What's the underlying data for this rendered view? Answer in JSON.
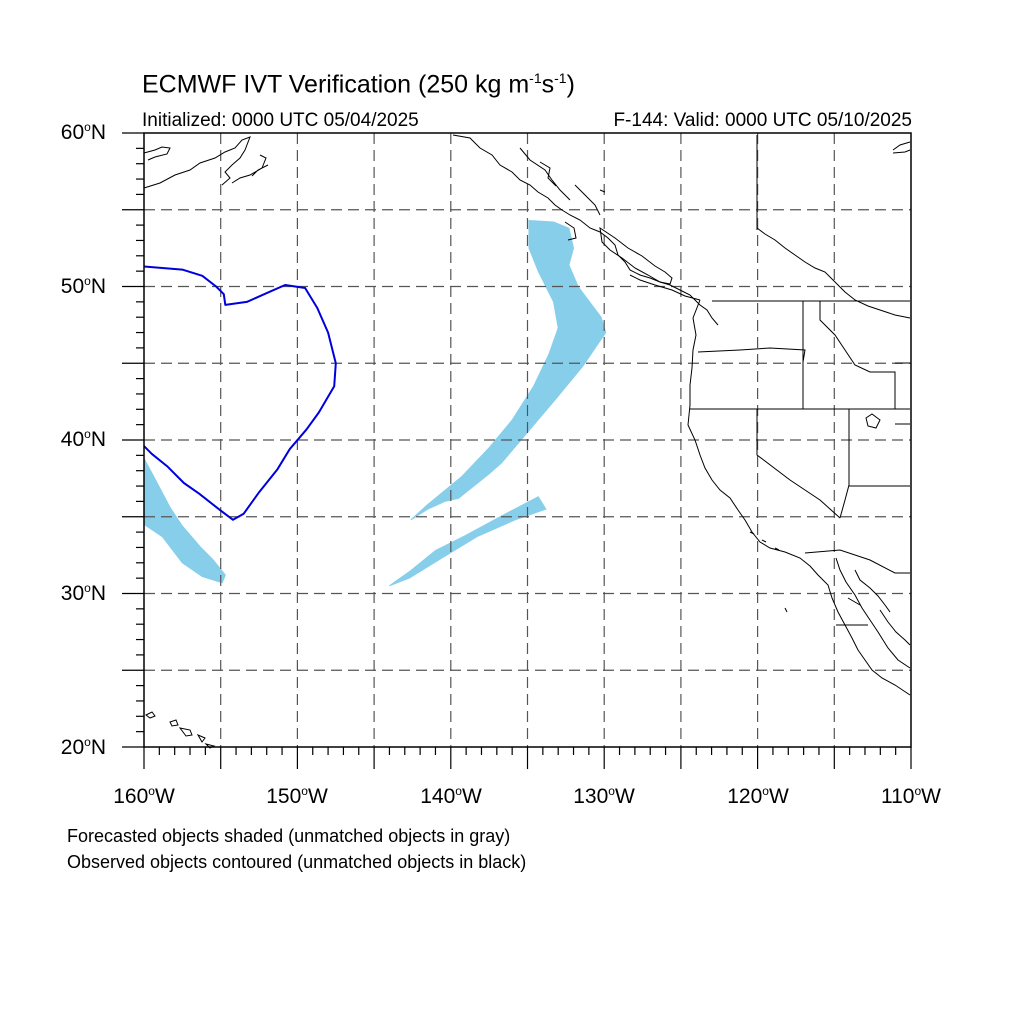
{
  "title": {
    "prefix": "ECMWF IVT Verification (250 kg m",
    "exp1": "-1",
    "mid": "s",
    "exp2": "-1",
    "suffix": ")"
  },
  "subtitle_left": "Initialized: 0000 UTC 05/04/2025",
  "subtitle_right": "F-144: Valid: 0000 UTC 05/10/2025",
  "lat_labels": [
    "60",
    "50",
    "40",
    "30",
    "20"
  ],
  "lat_suffix": "N",
  "lon_labels": [
    "160",
    "150",
    "140",
    "130",
    "120",
    "110"
  ],
  "lon_suffix": "W",
  "degree_symbol": "o",
  "notes": [
    "Forecasted objects shaded (unmatched objects in gray)",
    "Observed objects contoured (unmatched objects in black)"
  ],
  "map": {
    "extent": {
      "lon_min": -160,
      "lon_max": -110,
      "lat_min": 20,
      "lat_max": 60
    },
    "forecast_color": "#87CEEB",
    "observed_color": "#0000DD",
    "grid_style": "dashed",
    "grid_lons": [
      -155,
      -150,
      -145,
      -140,
      -135,
      -130,
      -125,
      -120,
      -115
    ],
    "grid_lats": [
      25,
      30,
      35,
      40,
      45,
      50,
      55
    ],
    "forecast_objects": [
      {
        "name": "main-ar-band",
        "lonlat": [
          [
            -134.9,
            54.3
          ],
          [
            -133.3,
            54.2
          ],
          [
            -132.3,
            53.8
          ],
          [
            -132.0,
            52.5
          ],
          [
            -132.3,
            51.4
          ],
          [
            -131.7,
            50.0
          ],
          [
            -130.2,
            48.0
          ],
          [
            -129.9,
            47.0
          ],
          [
            -131.4,
            44.8
          ],
          [
            -133.3,
            42.5
          ],
          [
            -135.0,
            40.5
          ],
          [
            -136.7,
            38.5
          ],
          [
            -137.5,
            37.8
          ],
          [
            -139.5,
            36.2
          ],
          [
            -140.4,
            36.0
          ],
          [
            -141.5,
            35.5
          ],
          [
            -142.6,
            34.8
          ],
          [
            -141.5,
            35.8
          ],
          [
            -139.3,
            37.6
          ],
          [
            -137.5,
            39.5
          ],
          [
            -136.0,
            41.3
          ],
          [
            -134.6,
            43.5
          ],
          [
            -133.6,
            45.6
          ],
          [
            -133.0,
            47.3
          ],
          [
            -133.3,
            49.0
          ],
          [
            -134.3,
            51.0
          ],
          [
            -134.9,
            52.5
          ]
        ]
      },
      {
        "name": "secondary-ar-band",
        "lonlat": [
          [
            -134.3,
            36.3
          ],
          [
            -133.8,
            35.5
          ],
          [
            -135.8,
            34.8
          ],
          [
            -138.3,
            33.7
          ],
          [
            -140.6,
            32.3
          ],
          [
            -142.7,
            31.0
          ],
          [
            -144.0,
            30.5
          ],
          [
            -142.6,
            31.5
          ],
          [
            -141.0,
            32.8
          ],
          [
            -139.0,
            33.8
          ],
          [
            -136.6,
            35.1
          ]
        ]
      },
      {
        "name": "subtropical-tail",
        "lonlat": [
          [
            -160.0,
            38.8
          ],
          [
            -159.3,
            37.5
          ],
          [
            -158.3,
            35.6
          ],
          [
            -157.5,
            34.4
          ],
          [
            -156.3,
            33.0
          ],
          [
            -155.5,
            32.2
          ],
          [
            -154.7,
            31.2
          ],
          [
            -154.9,
            30.7
          ],
          [
            -156.2,
            31.1
          ],
          [
            -157.5,
            32.0
          ],
          [
            -158.8,
            33.7
          ],
          [
            -160.0,
            34.5
          ]
        ]
      }
    ],
    "observed_objects": [
      {
        "name": "observed-contour-north",
        "lonlat": [
          [
            -160.0,
            51.3
          ],
          [
            -157.5,
            51.1
          ],
          [
            -156.2,
            50.7
          ],
          [
            -155.3,
            50.0
          ],
          [
            -154.8,
            49.5
          ],
          [
            -154.7,
            48.8
          ],
          [
            -153.3,
            49.0
          ],
          [
            -151.7,
            49.7
          ],
          [
            -150.8,
            50.1
          ],
          [
            -149.5,
            49.9
          ],
          [
            -148.7,
            48.6
          ],
          [
            -148.0,
            47.0
          ],
          [
            -147.5,
            45.0
          ],
          [
            -147.6,
            43.5
          ],
          [
            -148.6,
            41.8
          ],
          [
            -149.4,
            40.7
          ],
          [
            -150.5,
            39.4
          ],
          [
            -151.3,
            38.1
          ],
          [
            -152.5,
            36.6
          ],
          [
            -153.5,
            35.2
          ],
          [
            -154.2,
            34.8
          ],
          [
            -155.0,
            35.4
          ],
          [
            -156.4,
            36.5
          ],
          [
            -157.4,
            37.2
          ],
          [
            -158.5,
            38.3
          ],
          [
            -159.5,
            39.1
          ],
          [
            -160.0,
            39.6
          ]
        ]
      }
    ]
  }
}
